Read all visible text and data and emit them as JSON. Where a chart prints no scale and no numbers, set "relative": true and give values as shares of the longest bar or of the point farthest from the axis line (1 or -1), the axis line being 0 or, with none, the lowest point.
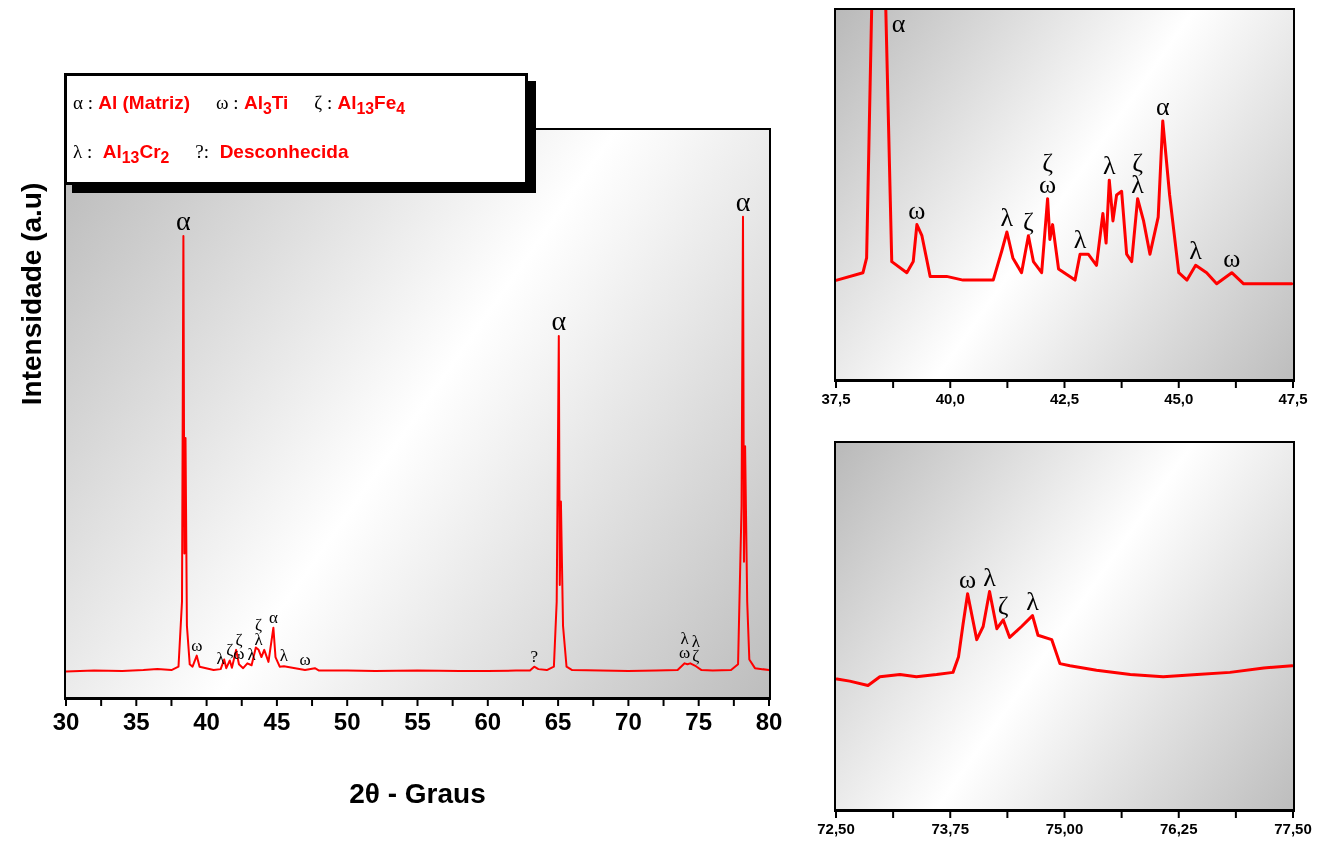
{
  "chart_data": [
    {
      "type": "line",
      "relative": true,
      "xlabel": "2θ - Graus",
      "ylabel": "Intensidade (a.u)",
      "marker": "none",
      "xlim": [
        30,
        80
      ],
      "xticks": [
        30,
        {
          "value": 32.5,
          "label": null
        },
        35,
        {
          "value": 37.5,
          "label": null
        },
        40,
        {
          "value": 42.5,
          "label": null
        },
        45,
        {
          "value": 47.5,
          "label": null
        },
        50,
        {
          "value": 52.5,
          "label": null
        },
        55,
        {
          "value": 57.5,
          "label": null
        },
        60,
        {
          "value": 62.5,
          "label": null
        },
        65,
        {
          "value": 67.5,
          "label": null
        },
        70,
        {
          "value": 72.5,
          "label": null
        },
        75,
        {
          "value": 77.5,
          "label": null
        },
        80
      ],
      "x": [
        30,
        32,
        34,
        35.5,
        36.5,
        37.5,
        38,
        38.25,
        38.35,
        38.42,
        38.5,
        38.6,
        38.8,
        39,
        39.3,
        39.5,
        40.5,
        41,
        41.25,
        41.4,
        41.65,
        41.8,
        42.1,
        42.3,
        42.6,
        42.9,
        43.2,
        43.5,
        43.7,
        43.9,
        44.1,
        44.4,
        44.75,
        44.9,
        45.2,
        45.5,
        46.1,
        47,
        47.7,
        48,
        50,
        52,
        55,
        58,
        60,
        62,
        63,
        63.3,
        63.6,
        64.2,
        64.7,
        64.9,
        65.05,
        65.12,
        65.2,
        65.35,
        65.6,
        66,
        68,
        70,
        72,
        73.5,
        74,
        74.2,
        74.4,
        74.8,
        75.2,
        76,
        77.3,
        77.8,
        78.05,
        78.15,
        78.22,
        78.3,
        78.45,
        78.6,
        79,
        80
      ],
      "series": [
        {
          "color": "#ff0000",
          "values": [
            0.055,
            0.057,
            0.056,
            0.058,
            0.06,
            0.058,
            0.065,
            0.2,
            0.96,
            0.3,
            0.54,
            0.15,
            0.07,
            0.065,
            0.088,
            0.065,
            0.058,
            0.06,
            0.08,
            0.062,
            0.078,
            0.063,
            0.1,
            0.07,
            0.062,
            0.072,
            0.068,
            0.105,
            0.1,
            0.085,
            0.1,
            0.075,
            0.146,
            0.085,
            0.065,
            0.066,
            0.063,
            0.058,
            0.062,
            0.057,
            0.057,
            0.056,
            0.057,
            0.056,
            0.056,
            0.057,
            0.057,
            0.065,
            0.06,
            0.058,
            0.065,
            0.2,
            0.752,
            0.235,
            0.408,
            0.15,
            0.065,
            0.058,
            0.057,
            0.056,
            0.057,
            0.058,
            0.072,
            0.07,
            0.072,
            0.066,
            0.058,
            0.057,
            0.058,
            0.07,
            0.4,
            1,
            0.283,
            0.523,
            0.2,
            0.08,
            0.062,
            0.058
          ]
        }
      ],
      "annotations": [
        "α : Al (Matriz)",
        "ω : Al$_{3}$Ti",
        "ζ : Al$_{13}$Fe$_{4}$",
        "λ :  Al$_{13}$Cr$_{2}$",
        "?:  Desconhecida",
        {
          "text": "α",
          "x": 38.35,
          "y": 0.96
        },
        {
          "text": "ω",
          "x": 39.3,
          "y": 0.088
        },
        {
          "text": "λ",
          "x": 41,
          "y": 0.06
        },
        {
          "text": "ζ",
          "x": 41.65,
          "y": 0.078
        },
        {
          "text": "ω",
          "x": 42.3,
          "y": 0.07
        },
        {
          "text": "ζ",
          "x": 42.3,
          "y": 0.07
        },
        {
          "text": "λ",
          "x": 43.2,
          "y": 0.068
        },
        {
          "text": "λ",
          "x": 43.7,
          "y": 0.1
        },
        {
          "text": "ζ",
          "x": 43.7,
          "y": 0.1
        },
        {
          "text": "α",
          "x": 44.75,
          "y": 0.146
        },
        {
          "text": "λ",
          "x": 45.5,
          "y": 0.066
        },
        {
          "text": "ω",
          "x": 47,
          "y": 0.058
        },
        {
          "text": "?",
          "x": 63.3,
          "y": 0.065
        },
        {
          "text": "α",
          "x": 65.05,
          "y": 0.752
        },
        {
          "text": "ω",
          "x": 74,
          "y": 0.072
        },
        {
          "text": "λ",
          "x": 74,
          "y": 0.072
        },
        {
          "text": "ζ",
          "x": 74.8,
          "y": 0.066
        },
        {
          "text": "λ",
          "x": 74.8,
          "y": 0.066
        },
        {
          "text": "α",
          "x": 78.15,
          "y": 1
        }
      ]
    },
    {
      "type": "line",
      "relative": true,
      "marker": "none",
      "xlim": [
        37.5,
        47.5
      ],
      "xticks": [
        {
          "value": 37.5,
          "label": "37,5"
        },
        {
          "value": 38.75,
          "label": null
        },
        {
          "value": 40,
          "label": "40,0"
        },
        {
          "value": 41.25,
          "label": null
        },
        {
          "value": 42.5,
          "label": "42,5"
        },
        {
          "value": 43.75,
          "label": null
        },
        {
          "value": 45,
          "label": "45,0"
        },
        {
          "value": 46.25,
          "label": null
        },
        {
          "value": 47.5,
          "label": "47,5"
        }
      ],
      "x": [
        37.52,
        38.09,
        38.17,
        38.28,
        38.43,
        38.59,
        38.72,
        39.05,
        39.19,
        39.27,
        39.38,
        39.56,
        39.92,
        40.28,
        40.94,
        41.13,
        41.24,
        41.37,
        41.56,
        41.71,
        41.82,
        42.0,
        42.13,
        42.18,
        42.24,
        42.37,
        42.73,
        42.84,
        43.02,
        43.2,
        43.34,
        43.41,
        43.48,
        43.56,
        43.64,
        43.75,
        43.86,
        43.97,
        44.1,
        44.23,
        44.37,
        44.55,
        44.65,
        44.8,
        45.0,
        45.18,
        45.37,
        45.61,
        45.83,
        46.16,
        46.42,
        46.85,
        47.47
      ],
      "series": [
        {
          "color": "#ff0000",
          "values": [
            0.27,
            0.29,
            0.33,
            1,
            null,
            1,
            0.32,
            0.29,
            0.32,
            0.42,
            0.39,
            0.28,
            0.28,
            0.27,
            0.27,
            0.35,
            0.4,
            0.33,
            0.29,
            0.39,
            0.32,
            0.29,
            0.49,
            0.38,
            0.42,
            0.3,
            0.27,
            0.34,
            0.34,
            0.31,
            0.45,
            0.37,
            0.54,
            0.43,
            0.5,
            0.51,
            0.34,
            0.32,
            0.49,
            0.43,
            0.34,
            0.44,
            0.7,
            0.5,
            0.29,
            0.27,
            0.31,
            0.29,
            0.26,
            0.29,
            0.26,
            0.26,
            0.26
          ]
        }
      ],
      "annotations": [
        {
          "text": "α",
          "x": 38.59,
          "y": 1
        },
        {
          "text": "ω",
          "x": 39.27,
          "y": 0.42
        },
        {
          "text": "λ",
          "x": 41.24,
          "y": 0.4
        },
        {
          "text": "ζ",
          "x": 41.71,
          "y": 0.39
        },
        {
          "text": "ω",
          "x": 42.13,
          "y": 0.49
        },
        {
          "text": "ζ",
          "x": 42.13,
          "y": 0.49
        },
        {
          "text": "λ",
          "x": 42.84,
          "y": 0.34
        },
        {
          "text": "λ",
          "x": 43.48,
          "y": 0.54
        },
        {
          "text": "λ",
          "x": 44.1,
          "y": 0.49
        },
        {
          "text": "ζ",
          "x": 44.1,
          "y": 0.49
        },
        {
          "text": "α",
          "x": 44.65,
          "y": 0.7
        },
        {
          "text": "λ",
          "x": 45.37,
          "y": 0.31
        },
        {
          "text": "ω",
          "x": 46.16,
          "y": 0.29
        }
      ]
    },
    {
      "type": "line",
      "relative": true,
      "marker": "none",
      "xlim": [
        72.5,
        77.5
      ],
      "xticks": [
        {
          "value": 72.5,
          "label": "72,50"
        },
        {
          "value": 73.125,
          "label": null
        },
        {
          "value": 73.75,
          "label": "73,75"
        },
        {
          "value": 74.375,
          "label": null
        },
        {
          "value": 75,
          "label": "75,00"
        },
        {
          "value": 75.625,
          "label": null
        },
        {
          "value": 76.25,
          "label": "76,25"
        },
        {
          "value": 76.875,
          "label": null
        },
        {
          "value": 77.5,
          "label": "77,50"
        }
      ],
      "x": [
        72.51,
        72.65,
        72.85,
        72.98,
        73.2,
        73.38,
        73.6,
        73.78,
        73.84,
        73.89,
        73.94,
        74.04,
        74.11,
        74.18,
        74.26,
        74.33,
        74.4,
        74.53,
        74.65,
        74.71,
        74.86,
        74.95,
        75.06,
        75.35,
        75.72,
        76.08,
        76.45,
        76.81,
        77.18,
        77.49
      ],
      "series": [
        {
          "color": "#ff0000",
          "values": [
            0.6,
            0.59,
            0.57,
            0.61,
            0.62,
            0.61,
            0.62,
            0.63,
            0.7,
            0.85,
            0.99,
            0.78,
            0.84,
            1,
            0.83,
            0.87,
            0.79,
            0.84,
            0.89,
            0.8,
            0.78,
            0.67,
            0.66,
            0.64,
            0.62,
            0.61,
            0.62,
            0.63,
            0.65,
            0.66
          ]
        }
      ],
      "annotations": [
        {
          "text": "ω",
          "x": 73.94,
          "y": 0.99
        },
        {
          "text": "λ",
          "x": 74.18,
          "y": 1
        },
        {
          "text": "ζ",
          "x": 74.33,
          "y": 0.87
        },
        {
          "text": "λ",
          "x": 74.65,
          "y": 0.89
        }
      ]
    }
  ]
}
